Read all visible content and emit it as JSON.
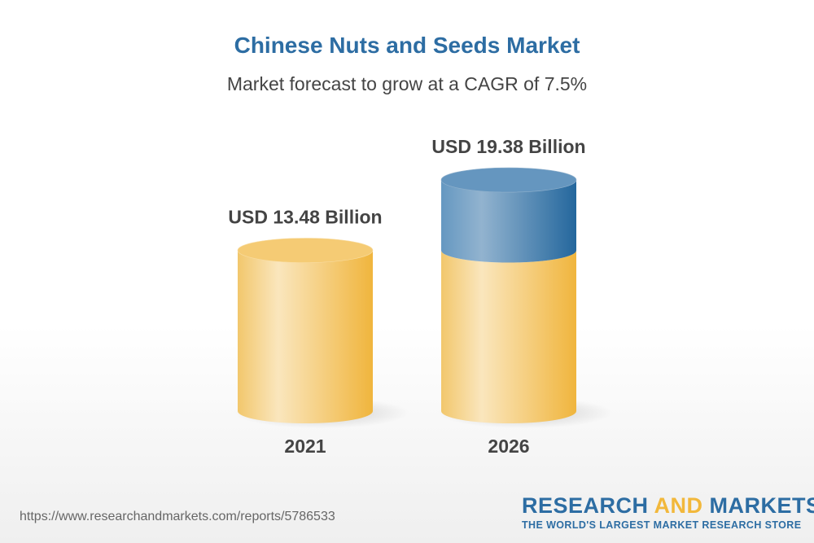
{
  "chart_data": {
    "type": "bar",
    "title": "Chinese Nuts and Seeds Market",
    "subtitle": "Market forecast to grow at a CAGR of 7.5%",
    "categories": [
      "2021",
      "2026"
    ],
    "values": [
      13.48,
      19.38
    ],
    "data_labels": [
      "USD 13.48 Billion",
      "USD 19.38 Billion"
    ],
    "unit": "USD Billion",
    "style": "3d-cylinder",
    "colors": {
      "base": "#f2c15a",
      "growth": "#3a77a8"
    }
  },
  "footer": {
    "url": "https://www.researchandmarkets.com/reports/5786533",
    "logo_part1": "RESEARCH ",
    "logo_part2": "AND",
    "logo_part3": " MARKETS",
    "tagline": "THE WORLD'S LARGEST MARKET RESEARCH STORE"
  }
}
